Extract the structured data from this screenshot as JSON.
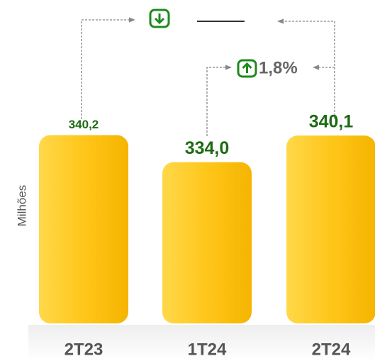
{
  "chart_data": {
    "type": "bar",
    "y_axis_label": "Milhões",
    "categories": [
      "2T23",
      "1T24",
      "2T24"
    ],
    "values": [
      340.2,
      334.0,
      340.1
    ],
    "value_labels": [
      "340,2",
      "334,0",
      "340,1"
    ],
    "color": "#ffc61a",
    "ylim": [
      297,
      345
    ],
    "annotations": [
      "1,8%"
    ]
  }
}
